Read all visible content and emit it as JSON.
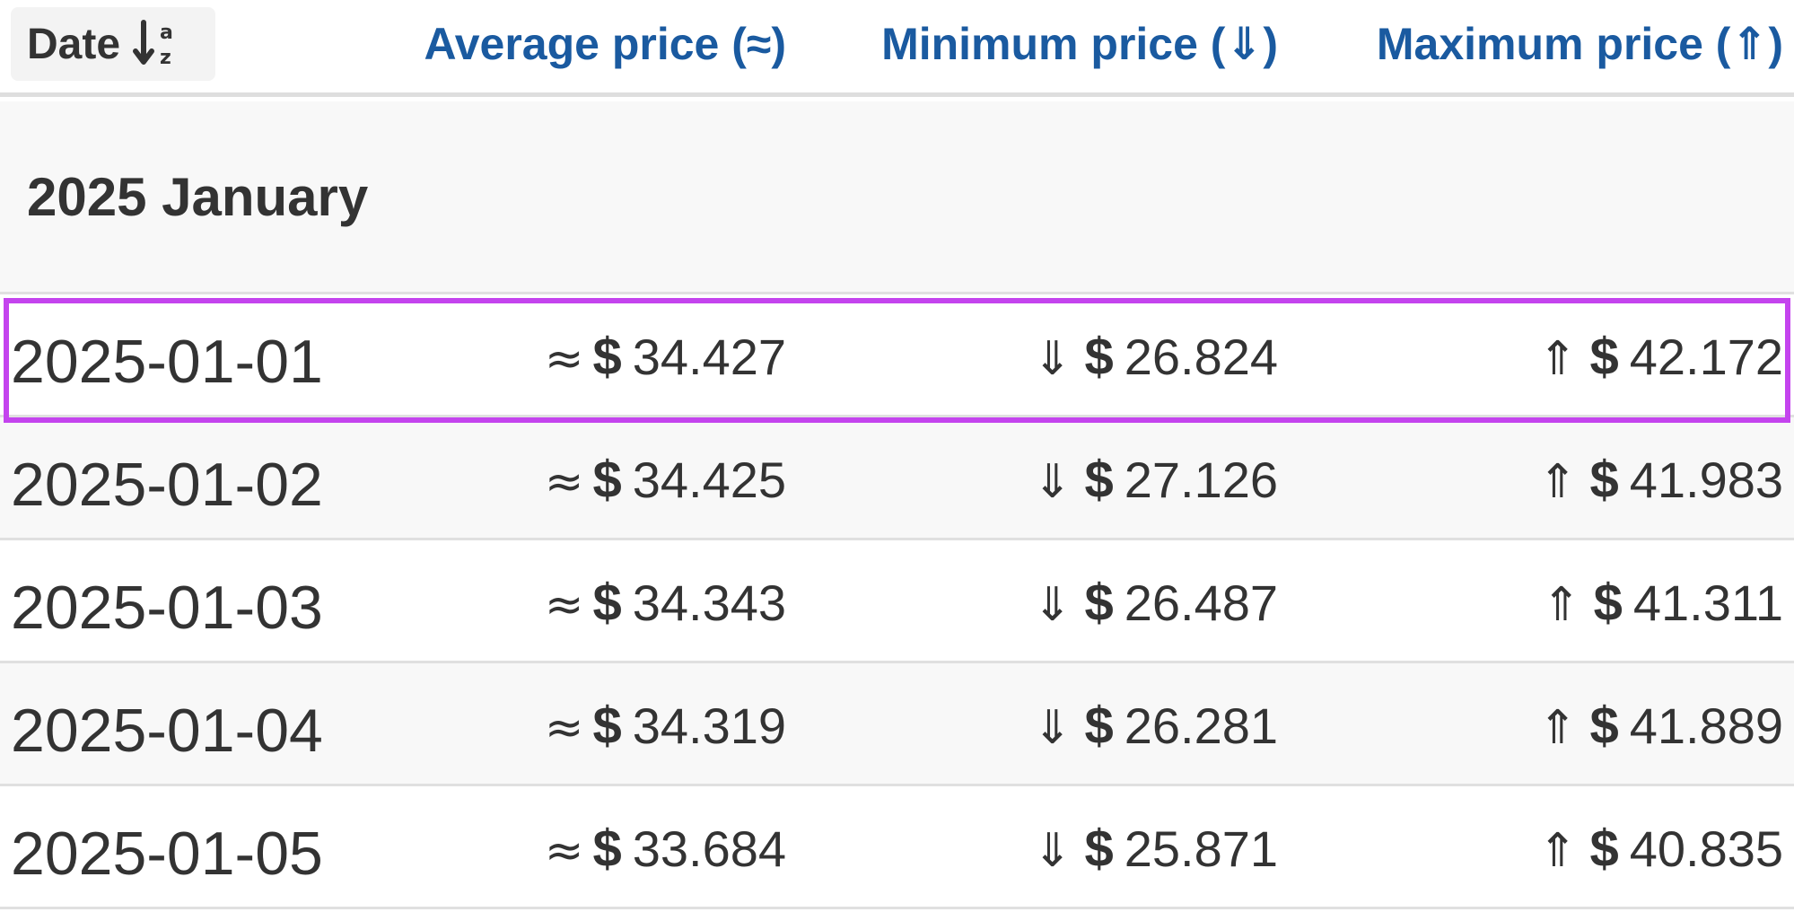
{
  "header": {
    "date_label": "Date",
    "sort_icon": "sort-ascending-az-icon",
    "avg_label": "Average price (≈)",
    "min_label": "Minimum price (⇓)",
    "max_label": "Maximum price (⇑)"
  },
  "colors": {
    "header_link": "#1a5aa0",
    "selection_outline": "#c444ee",
    "text": "#333333"
  },
  "symbols": {
    "approx": "≈",
    "down": "⇓",
    "up": "⇑",
    "currency": "$"
  },
  "month_group": {
    "title": "2025 January"
  },
  "rows": [
    {
      "date": "2025-01-01",
      "avg": "34.427",
      "min": "26.824",
      "max": "42.172"
    },
    {
      "date": "2025-01-02",
      "avg": "34.425",
      "min": "27.126",
      "max": "41.983"
    },
    {
      "date": "2025-01-03",
      "avg": "34.343",
      "min": "26.487",
      "max": "41.311"
    },
    {
      "date": "2025-01-04",
      "avg": "34.319",
      "min": "26.281",
      "max": "41.889"
    },
    {
      "date": "2025-01-05",
      "avg": "33.684",
      "min": "25.871",
      "max": "40.835"
    }
  ]
}
